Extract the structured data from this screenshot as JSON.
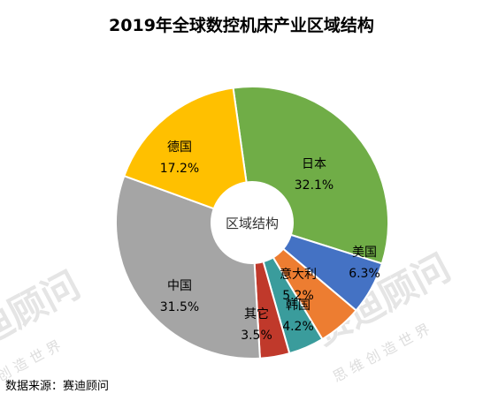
{
  "chart_data": {
    "type": "pie",
    "title": "2019年全球数控机床产业区域结构",
    "center_label": "区域结构",
    "slices": [
      {
        "name": "日本",
        "value": 32.1,
        "label": "32.1%",
        "color": "#70AD47"
      },
      {
        "name": "美国",
        "value": 6.3,
        "label": "6.3%",
        "color": "#4472C4"
      },
      {
        "name": "意大利",
        "value": 5.2,
        "label": "5.2%",
        "color": "#ED7D31"
      },
      {
        "name": "韩国",
        "value": 4.2,
        "label": "4.2%",
        "color": "#3A9C9C"
      },
      {
        "name": "其它",
        "value": 3.5,
        "label": "3.5%",
        "color": "#C0392B"
      },
      {
        "name": "中国",
        "value": 31.5,
        "label": "31.5%",
        "color": "#A5A5A5"
      },
      {
        "name": "德国",
        "value": 17.2,
        "label": "17.2%",
        "color": "#FFC000"
      }
    ]
  },
  "source": "数据来源：赛迪顾问",
  "watermark": {
    "brand": "赛迪顾问",
    "slogan": "思 维 创 造 世 界"
  }
}
